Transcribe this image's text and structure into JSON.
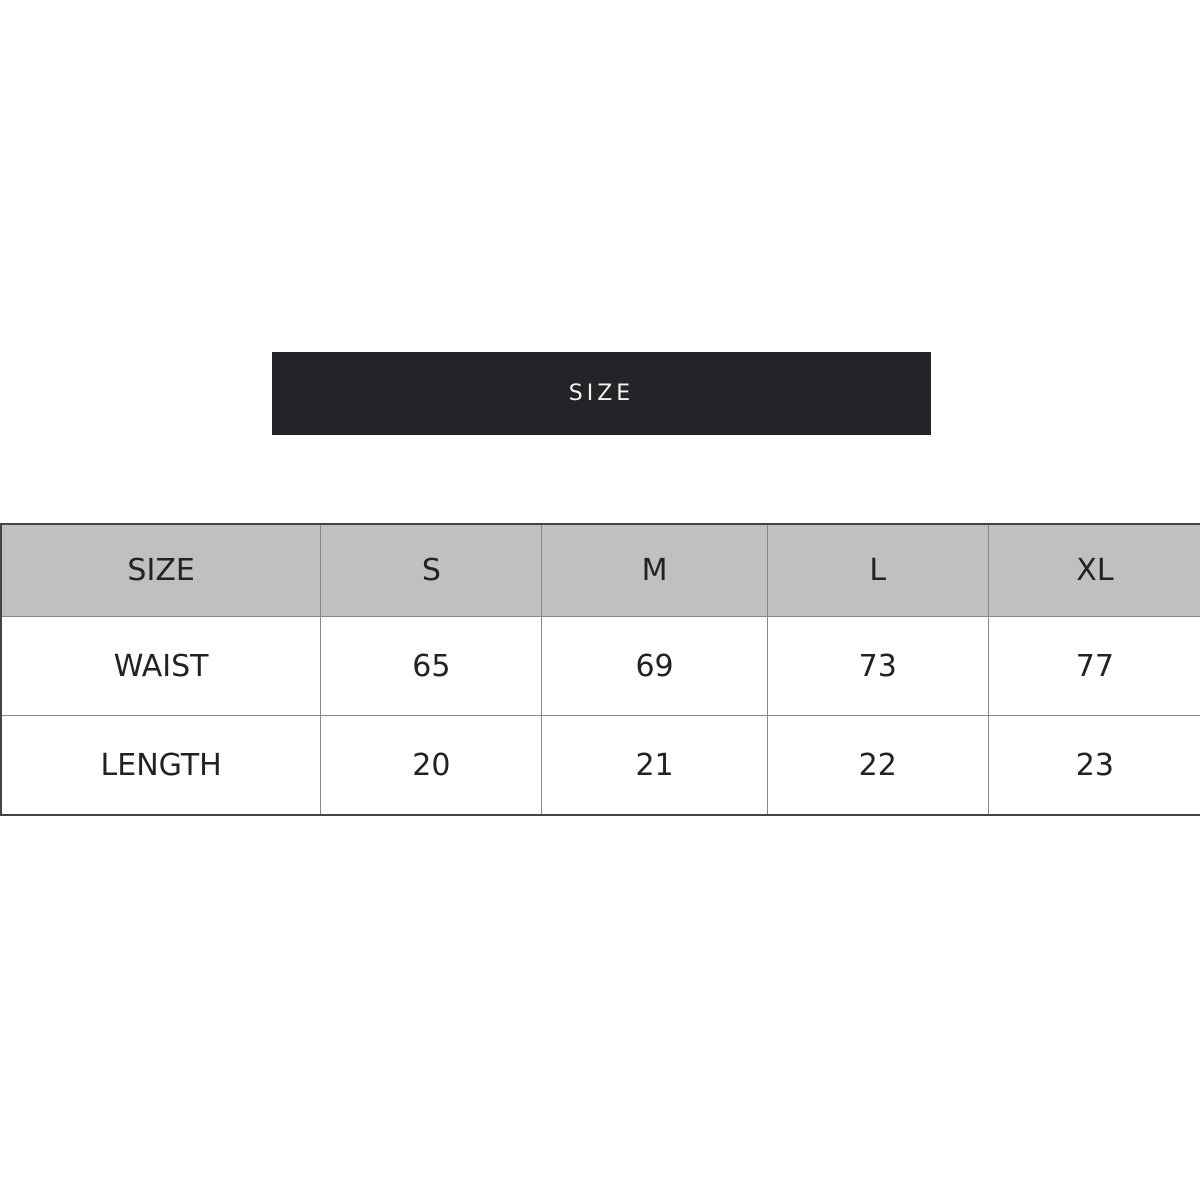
{
  "banner": {
    "title": "SIZE"
  },
  "table": {
    "headers": [
      "SIZE",
      "S",
      "M",
      "L",
      "XL"
    ],
    "rows": [
      [
        "WAIST",
        "65",
        "69",
        "73",
        "77"
      ],
      [
        "LENGTH",
        "20",
        "21",
        "22",
        "23"
      ]
    ]
  },
  "colors": {
    "banner_bg": "#232428",
    "header_bg": "#c0c0c0"
  }
}
